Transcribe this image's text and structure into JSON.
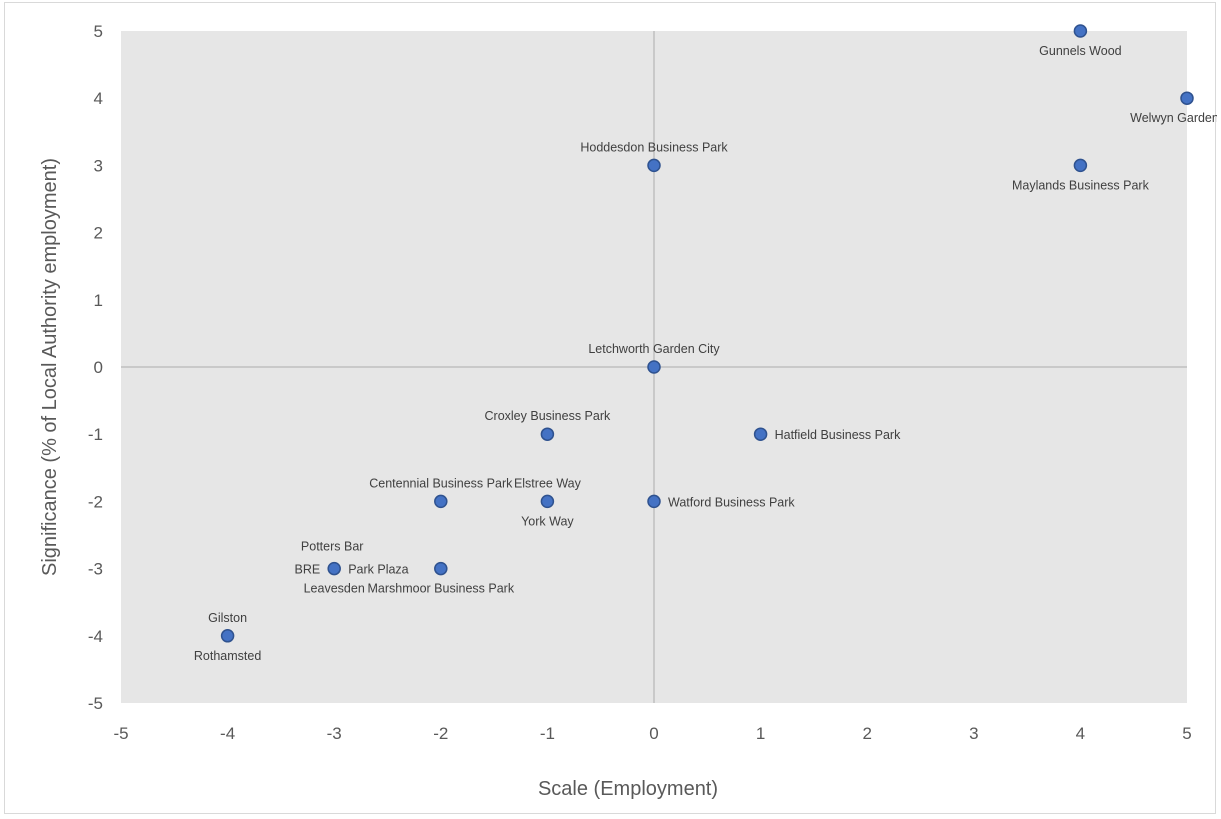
{
  "chart_data": {
    "type": "scatter",
    "title": "",
    "xlabel": "Scale (Employment)",
    "ylabel": "Significance (% of Local Authority employment)",
    "xlim": [
      -5,
      5
    ],
    "ylim": [
      -5,
      5
    ],
    "xticks": [
      -5,
      -4,
      -3,
      -2,
      -1,
      0,
      1,
      2,
      3,
      4,
      5
    ],
    "yticks": [
      -5,
      -4,
      -3,
      -2,
      -1,
      0,
      1,
      2,
      3,
      4,
      5
    ],
    "grid": false,
    "plot_background": "#e6e6e6",
    "axis_line_color": "#bfbfbf",
    "marker_color": "#4472c4",
    "marker_edge_color": "#2f528f",
    "points": [
      {
        "x": 4,
        "y": 5
      },
      {
        "x": 5,
        "y": 4
      },
      {
        "x": 0,
        "y": 3
      },
      {
        "x": 4,
        "y": 3
      },
      {
        "x": 0,
        "y": 0
      },
      {
        "x": -1,
        "y": -1
      },
      {
        "x": 1,
        "y": -1
      },
      {
        "x": -2,
        "y": -2
      },
      {
        "x": -1,
        "y": -2
      },
      {
        "x": 0,
        "y": -2
      },
      {
        "x": -3,
        "y": -3
      },
      {
        "x": -2,
        "y": -3
      },
      {
        "x": -4,
        "y": -4
      }
    ],
    "annotations": [
      {
        "text": "Gunnels Wood",
        "x": 4,
        "y": 5,
        "position": "below"
      },
      {
        "text": "Welwyn Garden City",
        "x": 5,
        "y": 4,
        "position": "below"
      },
      {
        "text": "Hoddesdon Business Park",
        "x": 0,
        "y": 3,
        "position": "above"
      },
      {
        "text": "Maylands Business Park",
        "x": 4,
        "y": 3,
        "position": "below"
      },
      {
        "text": "Letchworth Garden City",
        "x": 0,
        "y": 0,
        "position": "above"
      },
      {
        "text": "Croxley Business Park",
        "x": -1,
        "y": -1,
        "position": "above"
      },
      {
        "text": "Hatfield Business Park",
        "x": 1,
        "y": -1,
        "position": "right"
      },
      {
        "text": "Centennial Business Park",
        "x": -2,
        "y": -2,
        "position": "above"
      },
      {
        "text": "Elstree Way",
        "x": -1,
        "y": -2,
        "position": "above"
      },
      {
        "text": "York Way",
        "x": -1,
        "y": -2,
        "position": "below"
      },
      {
        "text": "Watford Business Park",
        "x": 0,
        "y": -2,
        "position": "right"
      },
      {
        "text": "Potters Bar",
        "x": -3,
        "y": -3,
        "position": "above-left"
      },
      {
        "text": "BRE",
        "x": -3,
        "y": -3,
        "position": "left"
      },
      {
        "text": "Park Plaza",
        "x": -3,
        "y": -3,
        "position": "right"
      },
      {
        "text": "Leavesden",
        "x": -3,
        "y": -3,
        "position": "below"
      },
      {
        "text": "Marshmoor Business Park",
        "x": -2,
        "y": -3,
        "position": "below"
      },
      {
        "text": "Gilston",
        "x": -4,
        "y": -4,
        "position": "above"
      },
      {
        "text": "Rothamsted",
        "x": -4,
        "y": -4,
        "position": "below"
      }
    ]
  }
}
